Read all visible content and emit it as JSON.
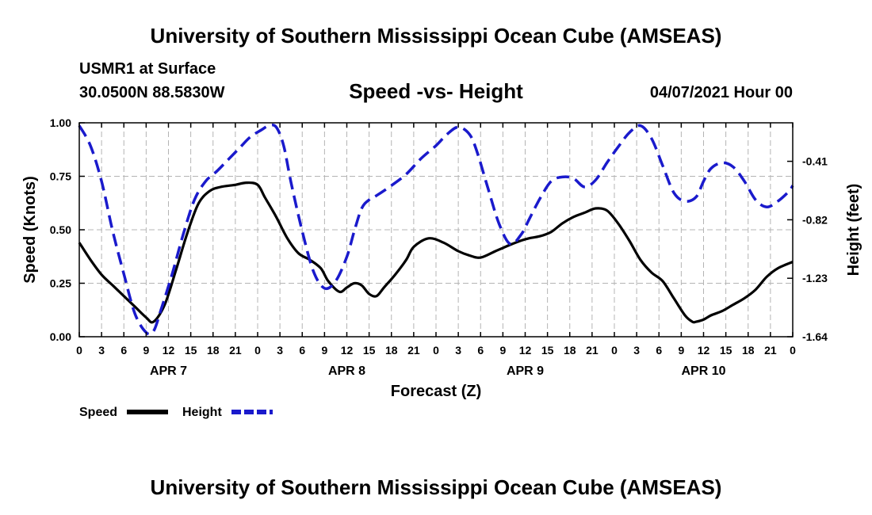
{
  "header": {
    "title": "University of Southern Mississippi Ocean Cube (AMSEAS)",
    "station": "USMR1 at Surface",
    "coords": "30.0500N  88.5830W",
    "subtitle": "Speed -vs- Height",
    "datetime": "04/07/2021 Hour 00"
  },
  "footer": {
    "title": "University of Southern Mississippi Ocean Cube (AMSEAS)"
  },
  "colors": {
    "speed": "#000000",
    "height": "#1a1acc",
    "grid": "#b4b4b4"
  },
  "chart_data": {
    "type": "line",
    "xlabel": "Forecast (Z)",
    "ylabel": "Speed (Knots)",
    "y2label": "Height (feet)",
    "x_range": [
      0,
      96
    ],
    "ylim": [
      0,
      1
    ],
    "y2lim": [
      -1.64,
      -0.14
    ],
    "x_ticks": [
      0,
      3,
      6,
      9,
      12,
      15,
      18,
      21,
      24,
      27,
      30,
      33,
      36,
      39,
      42,
      45,
      48,
      51,
      54,
      57,
      60,
      63,
      66,
      69,
      72,
      75,
      78,
      81,
      84,
      87,
      90,
      93,
      96
    ],
    "x_tick_labels": [
      "0",
      "3",
      "6",
      "9",
      "12",
      "15",
      "18",
      "21",
      "0",
      "3",
      "6",
      "9",
      "12",
      "15",
      "18",
      "21",
      "0",
      "3",
      "6",
      "9",
      "12",
      "15",
      "18",
      "21",
      "0",
      "3",
      "6",
      "9",
      "12",
      "15",
      "18",
      "21",
      "0"
    ],
    "day_labels": [
      {
        "x": 12,
        "label": "APR 7"
      },
      {
        "x": 36,
        "label": "APR 8"
      },
      {
        "x": 60,
        "label": "APR 9"
      },
      {
        "x": 84,
        "label": "APR 10"
      }
    ],
    "y_ticks": [
      0,
      0.25,
      0.5,
      0.75,
      1.0
    ],
    "y_tick_labels": [
      "0.00",
      "0.25",
      "0.50",
      "0.75",
      "1.00"
    ],
    "y2_ticks": [
      -1.64,
      -1.23,
      -0.82,
      -0.41
    ],
    "y2_tick_labels": [
      "-1.64",
      "-1.23",
      "-0.82",
      "-0.41"
    ],
    "legend": [
      {
        "name": "Speed",
        "style": "solid"
      },
      {
        "name": "Height",
        "style": "dashed"
      }
    ],
    "series": [
      {
        "name": "Speed",
        "axis": "left",
        "x": [
          0,
          1.5,
          3,
          4.5,
          6,
          7.5,
          9,
          10,
          11.5,
          13,
          14.5,
          16,
          17.5,
          19,
          21,
          22.5,
          24,
          25,
          26.5,
          28,
          29.5,
          31,
          32.5,
          33.5,
          35,
          36,
          37,
          38,
          39,
          40,
          41,
          42.5,
          44,
          45,
          47,
          49,
          51,
          52.5,
          54,
          56,
          58,
          59.5,
          60.5,
          62,
          63.5,
          65,
          66.5,
          68,
          69.5,
          71,
          72.5,
          74,
          75.5,
          77,
          78.5,
          80,
          81.5,
          82.5,
          83,
          84,
          85,
          86.5,
          88,
          89.5,
          91,
          92.5,
          94,
          96
        ],
        "values": [
          0.44,
          0.36,
          0.29,
          0.24,
          0.19,
          0.14,
          0.09,
          0.07,
          0.15,
          0.31,
          0.48,
          0.62,
          0.68,
          0.7,
          0.71,
          0.72,
          0.71,
          0.65,
          0.56,
          0.46,
          0.39,
          0.36,
          0.32,
          0.26,
          0.21,
          0.23,
          0.25,
          0.24,
          0.2,
          0.19,
          0.23,
          0.29,
          0.36,
          0.42,
          0.46,
          0.44,
          0.4,
          0.38,
          0.37,
          0.4,
          0.43,
          0.45,
          0.46,
          0.47,
          0.49,
          0.53,
          0.56,
          0.58,
          0.6,
          0.59,
          0.53,
          0.45,
          0.36,
          0.3,
          0.26,
          0.18,
          0.1,
          0.07,
          0.07,
          0.08,
          0.1,
          0.12,
          0.15,
          0.18,
          0.22,
          0.28,
          0.32,
          0.35
        ]
      },
      {
        "name": "Height",
        "axis": "right",
        "x": [
          0,
          1.5,
          3,
          4.5,
          6,
          7.5,
          9,
          10,
          11,
          12.5,
          14,
          15.5,
          17,
          18.5,
          20,
          21.5,
          23,
          24.5,
          25.5,
          26.5,
          27.5,
          28.5,
          30,
          31.5,
          33,
          34.5,
          36,
          37,
          38,
          39,
          40,
          42,
          44,
          46,
          48,
          49.5,
          51,
          52.5,
          53.5,
          55,
          56.5,
          58,
          59.5,
          60.5,
          62,
          63.5,
          65,
          66.5,
          68,
          69.5,
          71,
          72.5,
          74,
          75.5,
          77,
          78.5,
          80,
          81.5,
          83,
          84,
          85,
          86.5,
          88,
          89.5,
          91,
          92.5,
          94,
          95.5,
          96
        ],
        "values": [
          -0.16,
          -0.3,
          -0.55,
          -0.9,
          -1.2,
          -1.48,
          -1.61,
          -1.6,
          -1.45,
          -1.2,
          -0.92,
          -0.68,
          -0.55,
          -0.48,
          -0.4,
          -0.32,
          -0.24,
          -0.19,
          -0.16,
          -0.17,
          -0.3,
          -0.56,
          -0.9,
          -1.18,
          -1.3,
          -1.25,
          -1.08,
          -0.9,
          -0.74,
          -0.68,
          -0.65,
          -0.58,
          -0.5,
          -0.39,
          -0.3,
          -0.22,
          -0.17,
          -0.22,
          -0.34,
          -0.6,
          -0.85,
          -0.99,
          -0.92,
          -0.82,
          -0.67,
          -0.55,
          -0.52,
          -0.53,
          -0.59,
          -0.54,
          -0.42,
          -0.31,
          -0.21,
          -0.16,
          -0.25,
          -0.44,
          -0.63,
          -0.69,
          -0.66,
          -0.55,
          -0.46,
          -0.42,
          -0.45,
          -0.55,
          -0.68,
          -0.73,
          -0.69,
          -0.62,
          -0.58
        ]
      }
    ]
  }
}
